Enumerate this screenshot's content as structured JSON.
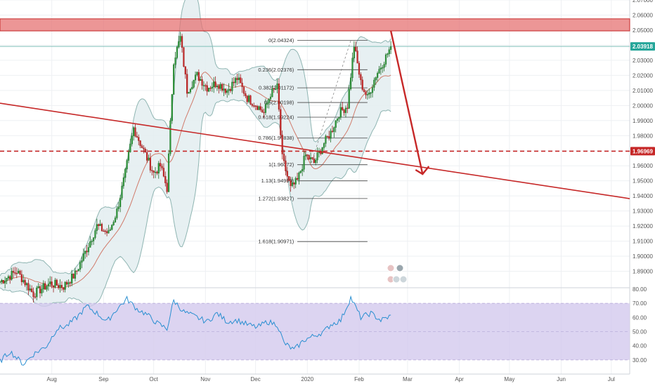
{
  "chart_data": {
    "type": "candlestick",
    "pair_panel": {
      "y_axis": {
        "min": 1.88,
        "max": 2.07,
        "tick_labels": [
          "1.89000",
          "1.90000",
          "1.91000",
          "1.92000",
          "1.93000",
          "1.94000",
          "1.95000",
          "1.96000",
          "1.97000",
          "1.98000",
          "1.99000",
          "2.00000",
          "2.01000",
          "2.02000",
          "2.03000",
          "2.04000",
          "2.05000",
          "2.06000",
          "2.07000"
        ],
        "tick_values": [
          1.89,
          1.9,
          1.91,
          1.92,
          1.93,
          1.94,
          1.95,
          1.96,
          1.97,
          1.98,
          1.99,
          2.0,
          2.01,
          2.02,
          2.03,
          2.04,
          2.05,
          2.06,
          2.07
        ]
      },
      "x_axis": {
        "tick_labels": [
          "Aug",
          "Sep",
          "Oct",
          "Nov",
          "Dec",
          "2020",
          "Feb",
          "Mar",
          "Apr",
          "May",
          "Jun",
          "Jul"
        ],
        "tick_days": [
          31,
          62,
          92,
          123,
          153,
          184,
          215,
          244,
          275,
          305,
          336,
          366
        ],
        "x_min_day": 0,
        "x_max_day": 377
      },
      "price_tags": [
        {
          "value": 2.03918,
          "label": "2.03918",
          "color": "#26a69a"
        },
        {
          "value": 1.96969,
          "label": "1.96969",
          "color": "#c62828"
        }
      ],
      "resistance_zone": {
        "from": 2.0495,
        "to": 2.0575,
        "color": "#e57373"
      },
      "support_dashed_level": 1.96969,
      "current_price_line": 2.03918,
      "trendline": {
        "start": {
          "day": 0,
          "price": 2.0015
        },
        "end": {
          "day": 377,
          "price": 1.9382
        }
      },
      "forecast_arrow": {
        "start": {
          "day": 234,
          "price": 2.0495
        },
        "end": {
          "day": 253,
          "price": 1.9545
        }
      },
      "fibonacci": [
        {
          "label": "0(2.04324)",
          "value": 2.04324
        },
        {
          "label": "0.236(2.02376)",
          "value": 2.02376
        },
        {
          "label": "0.382(2.01172)",
          "value": 2.01172
        },
        {
          "label": "0.5(2.00198)",
          "value": 2.00198
        },
        {
          "label": "0.618(1.99224)",
          "value": 1.99224
        },
        {
          "label": "0.786(1.97838)",
          "value": 1.97838
        },
        {
          "label": "1(1.96072)",
          "value": 1.96072
        },
        {
          "label": "1.13(1.94999)",
          "value": 1.94999
        },
        {
          "label": "1.272(1.93827)",
          "value": 1.93827
        },
        {
          "label": "1.618(1.90971)",
          "value": 1.90971
        }
      ],
      "anchor_points": [
        [
          0,
          1.883
        ],
        [
          10,
          1.89
        ],
        [
          20,
          1.875
        ],
        [
          30,
          1.882
        ],
        [
          38,
          1.88
        ],
        [
          45,
          1.888
        ],
        [
          52,
          1.905
        ],
        [
          58,
          1.92
        ],
        [
          65,
          1.915
        ],
        [
          70,
          1.93
        ],
        [
          75,
          1.955
        ],
        [
          80,
          1.985
        ],
        [
          84,
          1.975
        ],
        [
          88,
          1.965
        ],
        [
          92,
          1.955
        ],
        [
          96,
          1.96
        ],
        [
          100,
          1.945
        ],
        [
          104,
          2.03
        ],
        [
          108,
          2.045
        ],
        [
          112,
          2.01
        ],
        [
          118,
          2.02
        ],
        [
          124,
          2.012
        ],
        [
          130,
          2.015
        ],
        [
          136,
          2.01
        ],
        [
          142,
          2.018
        ],
        [
          148,
          2.005
        ],
        [
          154,
          2.0
        ],
        [
          158,
          1.995
        ],
        [
          162,
          2.008
        ],
        [
          166,
          2.012
        ],
        [
          169,
          1.965
        ],
        [
          174,
          1.945
        ],
        [
          178,
          1.95
        ],
        [
          183,
          1.967
        ],
        [
          188,
          1.962
        ],
        [
          194,
          1.975
        ],
        [
          198,
          1.982
        ],
        [
          203,
          1.995
        ],
        [
          208,
          2.0
        ],
        [
          212,
          2.04
        ],
        [
          216,
          2.015
        ],
        [
          220,
          2.005
        ],
        [
          225,
          2.02
        ],
        [
          230,
          2.03
        ],
        [
          234,
          2.039
        ]
      ]
    },
    "rsi_panel": {
      "y_axis": {
        "min": 20,
        "max": 80,
        "tick_labels": [
          "30.00",
          "40.00",
          "50.00",
          "60.00",
          "70.00",
          "80.00"
        ],
        "tick_values": [
          30,
          40,
          50,
          60,
          70,
          80
        ]
      },
      "band": {
        "from": 30,
        "to": 70
      },
      "anchor_points": [
        [
          0,
          29
        ],
        [
          6,
          36
        ],
        [
          14,
          27
        ],
        [
          20,
          34
        ],
        [
          28,
          40
        ],
        [
          34,
          52
        ],
        [
          40,
          54
        ],
        [
          46,
          60
        ],
        [
          52,
          68
        ],
        [
          58,
          63
        ],
        [
          64,
          57
        ],
        [
          70,
          66
        ],
        [
          76,
          73
        ],
        [
          82,
          66
        ],
        [
          88,
          62
        ],
        [
          94,
          56
        ],
        [
          100,
          52
        ],
        [
          104,
          72
        ],
        [
          110,
          64
        ],
        [
          118,
          60
        ],
        [
          124,
          57
        ],
        [
          130,
          63
        ],
        [
          136,
          57
        ],
        [
          142,
          58
        ],
        [
          148,
          55
        ],
        [
          154,
          53
        ],
        [
          160,
          57
        ],
        [
          166,
          55
        ],
        [
          170,
          42
        ],
        [
          176,
          37
        ],
        [
          182,
          44
        ],
        [
          188,
          47
        ],
        [
          194,
          50
        ],
        [
          198,
          55
        ],
        [
          204,
          58
        ],
        [
          210,
          74
        ],
        [
          216,
          60
        ],
        [
          222,
          63
        ],
        [
          228,
          58
        ],
        [
          234,
          61
        ]
      ]
    }
  }
}
